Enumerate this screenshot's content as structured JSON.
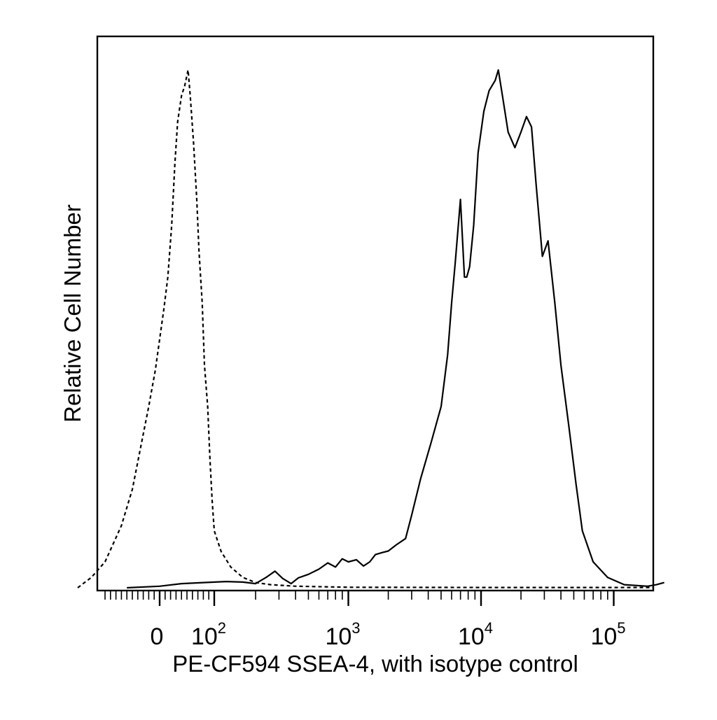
{
  "chart_data": {
    "type": "line",
    "title": "",
    "xlabel": "PE-CF594 SSEA-4, with isotype control",
    "ylabel": "Relative Cell Number",
    "x_scale": "biexponential",
    "xlim": [
      -150,
      250000
    ],
    "ylim": [
      0,
      100
    ],
    "grid": false,
    "legend": "none",
    "x_tick_labels": [
      {
        "value": 0,
        "base": "0",
        "exp": ""
      },
      {
        "value": 100,
        "base": "10",
        "exp": "2"
      },
      {
        "value": 1000,
        "base": "10",
        "exp": "3"
      },
      {
        "value": 10000,
        "base": "10",
        "exp": "4"
      },
      {
        "value": 100000,
        "base": "10",
        "exp": "5"
      }
    ],
    "series": [
      {
        "style": "solid",
        "color": "#000000",
        "points": [
          [
            -60,
            0
          ],
          [
            0,
            0.3
          ],
          [
            40,
            0.8
          ],
          [
            80,
            1.0
          ],
          [
            120,
            1.2
          ],
          [
            160,
            1.1
          ],
          [
            200,
            0.8
          ],
          [
            240,
            2.0
          ],
          [
            280,
            3.2
          ],
          [
            320,
            1.8
          ],
          [
            370,
            0.8
          ],
          [
            420,
            1.9
          ],
          [
            500,
            2.6
          ],
          [
            600,
            3.6
          ],
          [
            700,
            4.8
          ],
          [
            800,
            4.0
          ],
          [
            900,
            5.6
          ],
          [
            1000,
            5.0
          ],
          [
            1150,
            5.4
          ],
          [
            1300,
            4.2
          ],
          [
            1450,
            5.0
          ],
          [
            1600,
            6.4
          ],
          [
            1800,
            6.8
          ],
          [
            2000,
            7.1
          ],
          [
            2300,
            8.3
          ],
          [
            2700,
            9.5
          ],
          [
            3000,
            14
          ],
          [
            3500,
            21
          ],
          [
            4200,
            28
          ],
          [
            5000,
            35
          ],
          [
            5600,
            45
          ],
          [
            6000,
            55
          ],
          [
            6400,
            63
          ],
          [
            7000,
            75
          ],
          [
            7500,
            60
          ],
          [
            7800,
            60
          ],
          [
            8200,
            62
          ],
          [
            8800,
            70
          ],
          [
            9500,
            84
          ],
          [
            10500,
            92
          ],
          [
            11500,
            96
          ],
          [
            12800,
            98
          ],
          [
            13500,
            100
          ],
          [
            14500,
            95
          ],
          [
            16000,
            88
          ],
          [
            18000,
            85
          ],
          [
            20000,
            88
          ],
          [
            22000,
            91
          ],
          [
            24000,
            89
          ],
          [
            26000,
            78
          ],
          [
            29000,
            64
          ],
          [
            32000,
            67
          ],
          [
            36000,
            55
          ],
          [
            40000,
            43
          ],
          [
            46000,
            31
          ],
          [
            52000,
            20
          ],
          [
            58000,
            11
          ],
          [
            70000,
            5
          ],
          [
            90000,
            2
          ],
          [
            120000,
            0.6
          ],
          [
            180000,
            0.3
          ],
          [
            210000,
            0.6
          ],
          [
            240000,
            1.0
          ]
        ]
      },
      {
        "style": "dashed",
        "color": "#000000",
        "points": [
          [
            -150,
            0
          ],
          [
            -125,
            2.0
          ],
          [
            -100,
            5.0
          ],
          [
            -70,
            12
          ],
          [
            -50,
            19
          ],
          [
            -35,
            27
          ],
          [
            -20,
            35
          ],
          [
            -8,
            42
          ],
          [
            0,
            48
          ],
          [
            8,
            54
          ],
          [
            15,
            60
          ],
          [
            22,
            70
          ],
          [
            28,
            82
          ],
          [
            33,
            90
          ],
          [
            40,
            95
          ],
          [
            46,
            97
          ],
          [
            52,
            100
          ],
          [
            56,
            95
          ],
          [
            62,
            86
          ],
          [
            68,
            75
          ],
          [
            72,
            65
          ],
          [
            78,
            55
          ],
          [
            82,
            43
          ],
          [
            88,
            35
          ],
          [
            92,
            25
          ],
          [
            96,
            17
          ],
          [
            100,
            11
          ],
          [
            110,
            7
          ],
          [
            130,
            4
          ],
          [
            160,
            2.0
          ],
          [
            200,
            1.0
          ],
          [
            260,
            0.6
          ],
          [
            400,
            0.3
          ],
          [
            1000,
            0.1
          ],
          [
            10000,
            0.05
          ],
          [
            200000,
            0.05
          ]
        ]
      }
    ]
  }
}
